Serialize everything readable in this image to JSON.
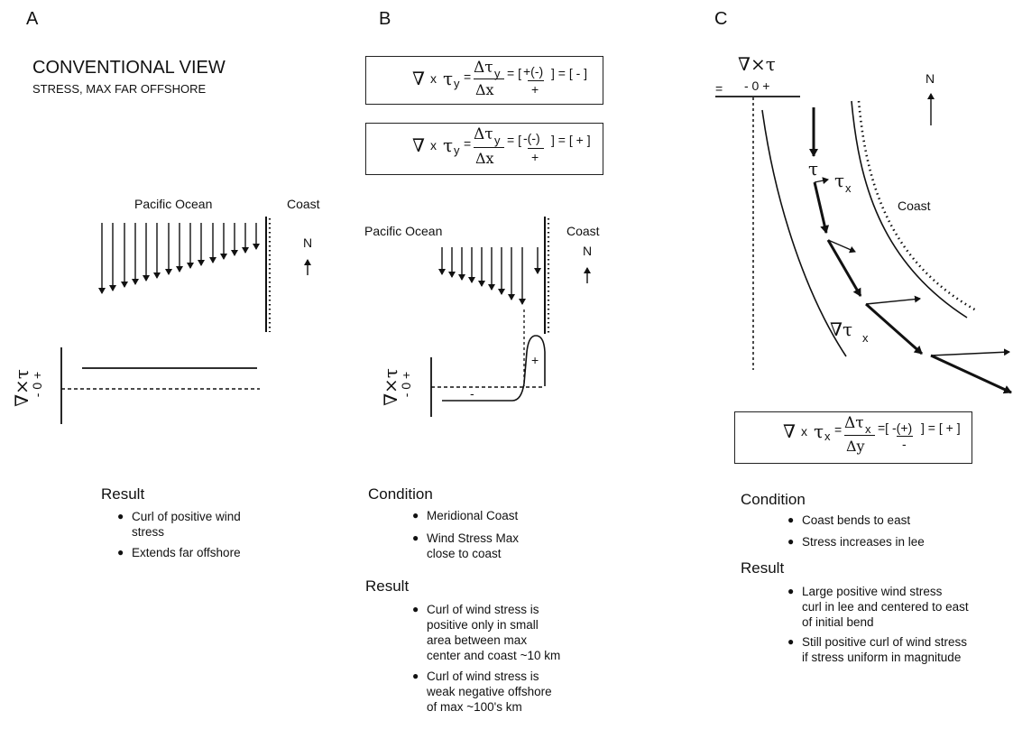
{
  "panels": {
    "a": {
      "letter": "A",
      "title": "CONVENTIONAL VIEW",
      "subtitle": "STRESS, MAX FAR OFFSHORE",
      "ocean_label": "Pacific Ocean",
      "coast_label": "Coast",
      "north_label": "N",
      "curl_axis_label": "∇×τ",
      "curl_axis_ticks": "- 0 +",
      "result_heading": "Result",
      "result_items": [
        "Curl of positive wind",
        "stress",
        "Extends far offshore"
      ]
    },
    "b": {
      "letter": "B",
      "eq1": {
        "nabla": "∇",
        "x": "x",
        "tau": "τ",
        "sub": "y",
        "eq": "=",
        "num": "Δτ",
        "num_sub": "y",
        "den": "Δx",
        "br1": "= [",
        "sign_top": "+(-)",
        "sign_bot": "+",
        "br2": "] = [ - ]"
      },
      "eq2": {
        "nabla": "∇",
        "x": "x",
        "tau": "τ",
        "sub": "y",
        "eq": "=",
        "num": "Δτ",
        "num_sub": "y",
        "den": "Δx",
        "br1": "= [",
        "sign_top": "-(-)",
        "sign_bot": "+",
        "br2": "] = [ + ]"
      },
      "ocean_label": "Pacific Ocean",
      "coast_label": "Coast",
      "north_label": "N",
      "curl_axis_label": "∇×τ",
      "curl_axis_ticks": "- 0 +",
      "curve_minus": "-",
      "curve_plus": "+",
      "condition_heading": "Condition",
      "condition_items": [
        "Meridional Coast",
        "Wind Stress Max",
        "close to coast"
      ],
      "result_heading": "Result",
      "result_items": [
        "Curl of wind stress is",
        "positive only in small",
        "area between max",
        "center and coast ~10 km",
        "Curl of wind stress is",
        "weak negative offshore",
        "of max ~100's km"
      ]
    },
    "c": {
      "letter": "C",
      "curl_label": "∇×τ",
      "axis_eq": "=",
      "axis_ticks": "- 0 +",
      "north_label": "N",
      "tau_label": "τ",
      "tau_x_label": "τ",
      "tau_x_sub": "x",
      "coast_label": "Coast",
      "grad_label": "∇τ",
      "grad_sub": "x",
      "eq": {
        "nabla": "∇",
        "x": "x",
        "tau": "τ",
        "sub": "x",
        "eq": "=",
        "num": "Δτ",
        "num_sub": "x",
        "den": "Δy",
        "br1": "=[",
        "sign_top": "-(+)",
        "sign_bot": "-",
        "br2": "] = [ + ]"
      },
      "condition_heading": "Condition",
      "condition_items": [
        "Coast bends to east",
        "Stress increases in lee"
      ],
      "result_heading": "Result",
      "result_items": [
        "Large positive wind stress",
        "curl in lee and centered to east",
        "of initial bend",
        "Still positive curl of wind stress",
        "if stress uniform in magnitude"
      ]
    }
  }
}
